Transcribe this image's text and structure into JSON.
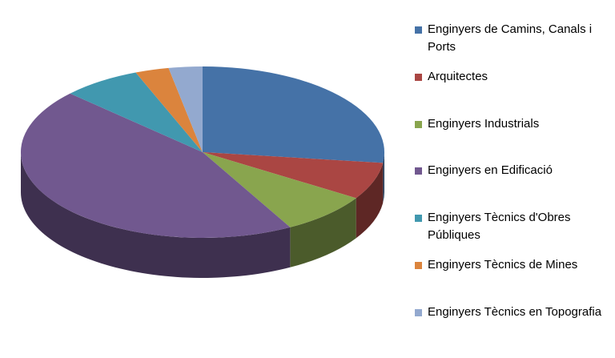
{
  "chart_data": {
    "type": "pie3d",
    "categories": [
      "Enginyers de Camins, Canals i Ports",
      "Arquitectes",
      "Enginyers Industrials",
      "Enginyers en Edificació",
      "Enginyers Tècnics d'Obres Públiques",
      "Enginyers Tècnics de Mines",
      "Enginyers Tècnics en Topografia"
    ],
    "values": [
      27,
      7,
      8,
      45,
      7,
      3,
      3
    ],
    "colors": [
      "#4572a7",
      "#aa4643",
      "#89a54e",
      "#71588f",
      "#4198af",
      "#db843d",
      "#93a9cf"
    ],
    "legend": "right"
  }
}
